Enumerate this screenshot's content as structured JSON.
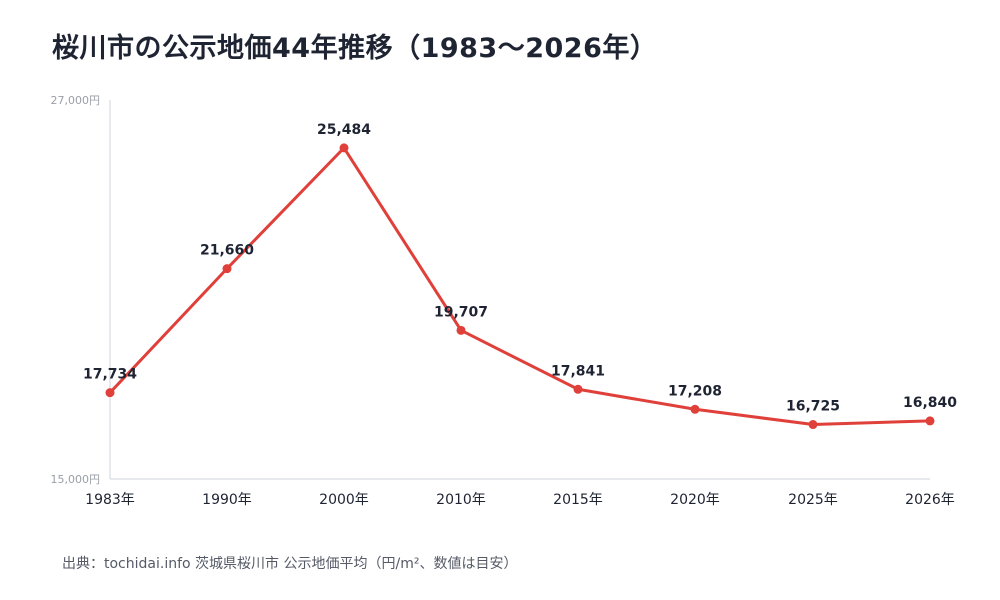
{
  "title": "桜川市の公示地価44年推移（1983〜2026年）",
  "source": "出典：tochidai.info 茨城県桜川市 公示地価平均（円/m²、数値は目安）",
  "colors": {
    "line": "#e0403a",
    "axis": "#cfd3d8",
    "text": "#1f2433"
  },
  "chart_data": {
    "type": "line",
    "title": "桜川市の公示地価44年推移（1983〜2026年）",
    "categories": [
      "1983年",
      "1990年",
      "2000年",
      "2010年",
      "2015年",
      "2020年",
      "2025年",
      "2026年"
    ],
    "values": [
      17734,
      21660,
      25484,
      19707,
      17841,
      17208,
      16725,
      16840
    ],
    "data_labels": [
      "17,734",
      "21,660",
      "25,484",
      "19,707",
      "17,841",
      "17,208",
      "16,725",
      "16,840"
    ],
    "ylim": [
      15000,
      27000
    ],
    "y_tick_labels": [
      "15,000円",
      "27,000円"
    ],
    "xlabel": "",
    "ylabel": "",
    "grid": false,
    "legend": "none"
  }
}
